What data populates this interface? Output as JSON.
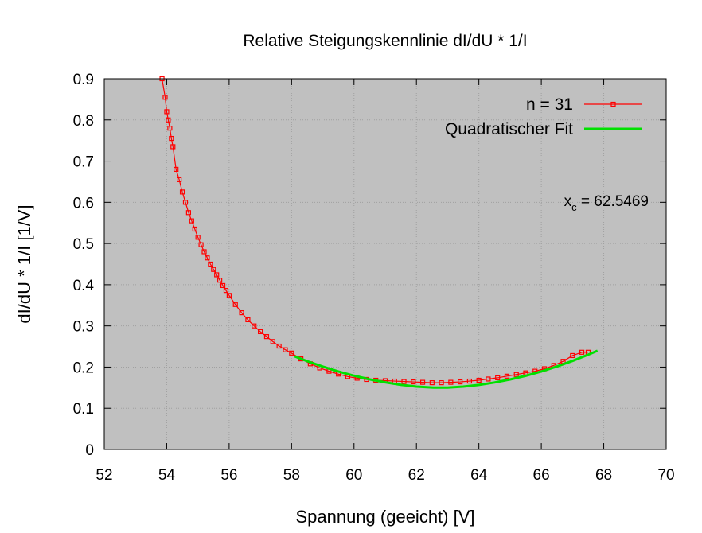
{
  "chart_data": {
    "type": "scatter",
    "title": "Relative Steigungskennlinie dI/dU * 1/I",
    "xlabel": "Spannung (geeicht) [V]",
    "ylabel": "dI/dU * 1/I [1/V]",
    "xlim": [
      52,
      70
    ],
    "ylim": [
      0,
      0.9
    ],
    "xticks": [
      52,
      54,
      56,
      58,
      60,
      62,
      64,
      66,
      68,
      70
    ],
    "yticks": [
      0,
      0.1,
      0.2,
      0.3,
      0.4,
      0.5,
      0.6,
      0.7,
      0.8,
      0.9
    ],
    "grid": true,
    "legend_position": "top-right",
    "plot_background": "#c0c0c0",
    "series": [
      {
        "name": "n = 31",
        "kind": "line-with-square-markers",
        "color": "#ff0000",
        "x": [
          53.85,
          53.95,
          54.0,
          54.05,
          54.1,
          54.15,
          54.2,
          54.3,
          54.4,
          54.5,
          54.6,
          54.7,
          54.8,
          54.9,
          55.0,
          55.1,
          55.2,
          55.3,
          55.4,
          55.5,
          55.6,
          55.7,
          55.8,
          55.9,
          56.0,
          56.2,
          56.4,
          56.6,
          56.8,
          57.0,
          57.2,
          57.4,
          57.6,
          57.8,
          58.0,
          58.3,
          58.6,
          58.9,
          59.2,
          59.5,
          59.8,
          60.1,
          60.4,
          60.7,
          61.0,
          61.3,
          61.6,
          61.9,
          62.2,
          62.5,
          62.8,
          63.1,
          63.4,
          63.7,
          64.0,
          64.3,
          64.6,
          64.9,
          65.2,
          65.5,
          65.8,
          66.1,
          66.4,
          66.7,
          67.0,
          67.3,
          67.5
        ],
        "y": [
          0.9,
          0.855,
          0.82,
          0.8,
          0.78,
          0.755,
          0.735,
          0.68,
          0.655,
          0.625,
          0.6,
          0.575,
          0.555,
          0.535,
          0.515,
          0.497,
          0.48,
          0.465,
          0.45,
          0.437,
          0.424,
          0.411,
          0.398,
          0.386,
          0.374,
          0.352,
          0.332,
          0.315,
          0.3,
          0.286,
          0.274,
          0.262,
          0.251,
          0.242,
          0.234,
          0.22,
          0.208,
          0.198,
          0.19,
          0.183,
          0.177,
          0.173,
          0.17,
          0.168,
          0.167,
          0.166,
          0.165,
          0.164,
          0.163,
          0.162,
          0.162,
          0.163,
          0.164,
          0.166,
          0.168,
          0.171,
          0.174,
          0.178,
          0.182,
          0.186,
          0.19,
          0.196,
          0.204,
          0.214,
          0.228,
          0.236,
          0.236
        ]
      },
      {
        "name": "Quadratischer Fit",
        "kind": "line",
        "color": "#00e000",
        "x": [
          58.1,
          58.5,
          59.0,
          59.5,
          60.0,
          60.5,
          61.0,
          61.5,
          62.0,
          62.5469,
          63.0,
          63.5,
          64.0,
          64.5,
          65.0,
          65.5,
          66.0,
          66.5,
          67.0,
          67.5,
          67.8
        ],
        "y": [
          0.2261,
          0.2144,
          0.2012,
          0.1894,
          0.1791,
          0.1702,
          0.1629,
          0.157,
          0.1525,
          0.1501,
          0.1502,
          0.1525,
          0.1567,
          0.1626,
          0.17,
          0.1789,
          0.1894,
          0.2014,
          0.215,
          0.2301,
          0.2397
        ]
      }
    ],
    "annotation": {
      "label": "x",
      "subscript": "c",
      "text": " = 62.5469"
    }
  }
}
